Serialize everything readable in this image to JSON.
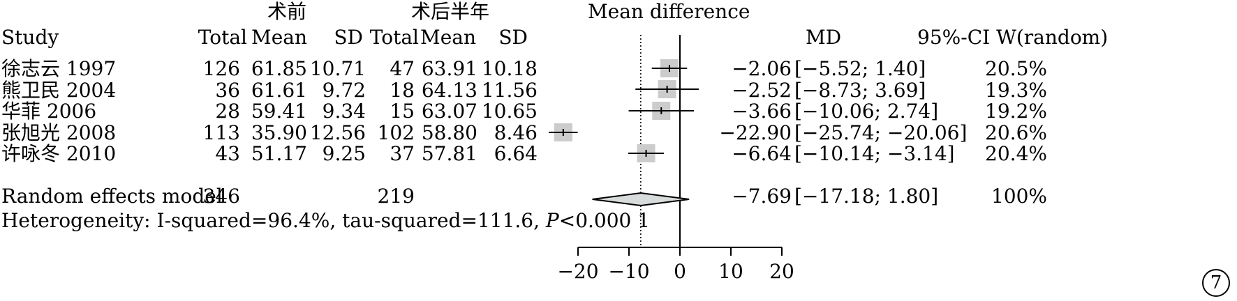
{
  "header": {
    "group1": "术前",
    "group2": "术后半年",
    "plot_title": "Mean difference"
  },
  "columns": {
    "study": "Study",
    "total1": "Total",
    "mean1": "Mean",
    "sd1": "SD",
    "total2": "Total",
    "mean2": "Mean",
    "sd2": "SD",
    "md": "MD",
    "ci_w": "95%-CI W(random)"
  },
  "rows": [
    {
      "study": "徐志云 1997",
      "total1": "126",
      "mean1": "61.85",
      "sd1": "10.71",
      "total2": "47",
      "mean2": "63.91",
      "sd2": "10.18",
      "md_text": "−2.06",
      "ci_text": "[−5.52; 1.40]",
      "weight_text": "20.5%"
    },
    {
      "study": "熊卫民 2004",
      "total1": "36",
      "mean1": "61.61",
      "sd1": "9.72",
      "total2": "18",
      "mean2": "64.13",
      "sd2": "11.56",
      "md_text": "−2.52",
      "ci_text": "[−8.73; 3.69]",
      "weight_text": "19.3%"
    },
    {
      "study": "华菲 2006",
      "total1": "28",
      "mean1": "59.41",
      "sd1": "9.34",
      "total2": "15",
      "mean2": "63.07",
      "sd2": "10.65",
      "md_text": "−3.66",
      "ci_text": "[−10.06; 2.74]",
      "weight_text": "19.2%"
    },
    {
      "study": "张旭光 2008",
      "total1": "113",
      "mean1": "35.90",
      "sd1": "12.56",
      "total2": "102",
      "mean2": "58.80",
      "sd2": "8.46",
      "md_text": "−22.90",
      "ci_text": "[−25.74; −20.06]",
      "weight_text": "20.6%"
    },
    {
      "study": "许咏冬 2010",
      "total1": "43",
      "mean1": "51.17",
      "sd1": "9.25",
      "total2": "37",
      "mean2": "57.81",
      "sd2": "6.64",
      "md_text": "−6.64",
      "ci_text": "[−10.14; −3.14]",
      "weight_text": "20.4%"
    }
  ],
  "summary": {
    "label": "Random effects model",
    "total1": "346",
    "total2": "219",
    "md_text": "−7.69",
    "ci_text": "[−17.18; 1.80]",
    "weight_text": "100%"
  },
  "heterogeneity": {
    "prefix": "Heterogeneity: I-squared=96.4%, tau-squared=111.6, ",
    "p_symbol": "P",
    "suffix": "<0.000 1"
  },
  "figure_number": "7",
  "chart_data": {
    "type": "forest",
    "title": "Mean difference",
    "xlim": [
      -20,
      20
    ],
    "xticks": [
      -20,
      -10,
      0,
      10,
      20
    ],
    "xtick_labels": [
      "−20",
      "−10",
      "0",
      "10",
      "20"
    ],
    "reference_line": 0,
    "pooled_line": -7.69,
    "studies": [
      {
        "name": "徐志云 1997",
        "md": -2.06,
        "lower": -5.52,
        "upper": 1.4,
        "weight": 20.5
      },
      {
        "name": "熊卫民 2004",
        "md": -2.52,
        "lower": -8.73,
        "upper": 3.69,
        "weight": 19.3
      },
      {
        "name": "华菲 2006",
        "md": -3.66,
        "lower": -10.06,
        "upper": 2.74,
        "weight": 19.2
      },
      {
        "name": "张旭光 2008",
        "md": -22.9,
        "lower": -25.74,
        "upper": -20.06,
        "weight": 20.6
      },
      {
        "name": "许咏冬 2010",
        "md": -6.64,
        "lower": -10.14,
        "upper": -3.14,
        "weight": 20.4
      }
    ],
    "pooled": {
      "name": "Random effects model",
      "md": -7.69,
      "lower": -17.18,
      "upper": 1.8,
      "weight": 100
    },
    "colors": {
      "box": "#cccccc",
      "diamond": "#d9dcdc",
      "line": "#000000"
    }
  }
}
